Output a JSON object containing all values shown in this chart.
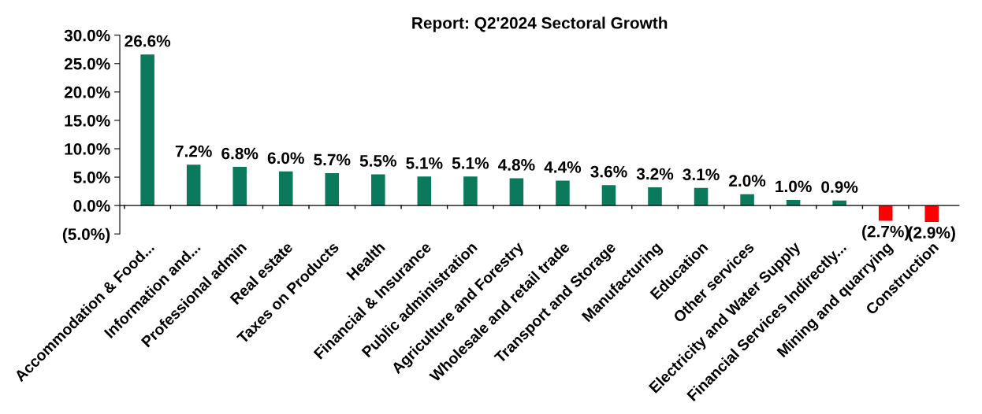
{
  "chart_data": {
    "type": "bar",
    "title": "Report: Q2'2024 Sectoral Growth",
    "categories": [
      "Accommodation & Food...",
      "Information and...",
      "Professional admin",
      "Real estate",
      "Taxes on Products",
      "Health",
      "Financial & Insurance",
      "Public administration",
      "Agriculture and Forestry",
      "Wholesale and retail trade",
      "Transport and Storage",
      "Manufacturing",
      "Education",
      "Other services",
      "Electricity and Water Supply",
      "Financial Services Indirectly...",
      "Mining and quarrying",
      "Construction"
    ],
    "values": [
      26.6,
      7.2,
      6.8,
      6.0,
      5.7,
      5.5,
      5.1,
      5.1,
      4.8,
      4.4,
      3.6,
      3.2,
      3.1,
      2.0,
      1.0,
      0.9,
      -2.7,
      -2.9
    ],
    "colors": [
      "#0b7a5c",
      "#0b7a5c",
      "#0b7a5c",
      "#0b7a5c",
      "#0b7a5c",
      "#0b7a5c",
      "#0b7a5c",
      "#0b7a5c",
      "#0b7a5c",
      "#0b7a5c",
      "#0b7a5c",
      "#0b7a5c",
      "#0b7a5c",
      "#0b7a5c",
      "#0b7a5c",
      "#0b7a5c",
      "#ff0000",
      "#ff0000"
    ],
    "value_labels": [
      "26.6%",
      "7.2%",
      "6.8%",
      "6.0%",
      "5.7%",
      "5.5%",
      "5.1%",
      "5.1%",
      "4.8%",
      "4.4%",
      "3.6%",
      "3.2%",
      "3.1%",
      "2.0%",
      "1.0%",
      "0.9%",
      "(2.7%)",
      "(2.9%)"
    ],
    "ylim": [
      -5,
      30
    ],
    "yticks": [
      {
        "value": -5,
        "label": "(5.0%)"
      },
      {
        "value": 0,
        "label": "0.0%"
      },
      {
        "value": 5,
        "label": "5.0%"
      },
      {
        "value": 10,
        "label": "10.0%"
      },
      {
        "value": 15,
        "label": "15.0%"
      },
      {
        "value": 20,
        "label": "20.0%"
      },
      {
        "value": 25,
        "label": "25.0%"
      },
      {
        "value": 30,
        "label": "30.0%"
      }
    ],
    "grid": false,
    "legend": false
  }
}
